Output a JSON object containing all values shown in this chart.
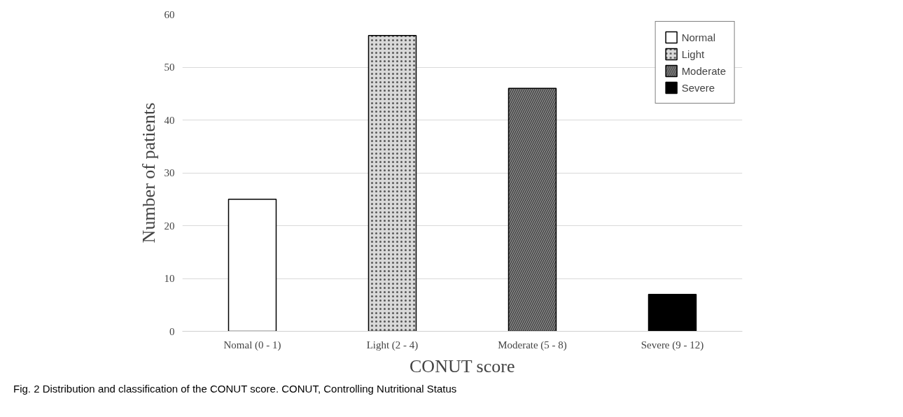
{
  "chart_data": {
    "type": "bar",
    "xlabel": "CONUT score",
    "ylabel": "Number of patients",
    "categories": [
      "Nomal (0 - 1)",
      "Light (2 - 4)",
      "Moderate (5 - 8)",
      "Severe (9 - 12)"
    ],
    "series": [
      {
        "name": "Normal",
        "color": "#ffffff",
        "values": [
          25,
          null,
          null,
          null
        ]
      },
      {
        "name": "Light",
        "color": "#d9d9d9",
        "values": [
          null,
          56,
          null,
          null
        ]
      },
      {
        "name": "Moderate",
        "color": "#808080",
        "values": [
          null,
          null,
          46,
          null
        ]
      },
      {
        "name": "Severe",
        "color": "#000000",
        "values": [
          null,
          null,
          null,
          7
        ]
      }
    ],
    "ylim": [
      0,
      60
    ],
    "yticks": [
      0,
      10,
      20,
      30,
      40,
      50,
      60
    ],
    "grid": "y",
    "legend": "top right",
    "annotations": [
      "Fig. 2  Distribution and classification of the CONUT score. CONUT, Controlling Nutritional Status"
    ]
  }
}
